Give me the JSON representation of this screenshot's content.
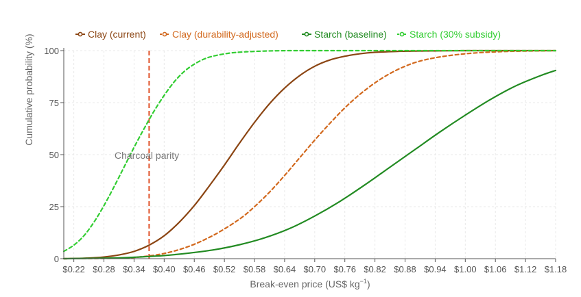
{
  "chart_data": {
    "type": "line",
    "title": "",
    "xlabel": "Break-even price (US$ kg",
    "xlabel_sup": "−1",
    "xlabel_close": ")",
    "ylabel": "Cumulative probability (%)",
    "xlim": [
      0.2,
      1.18
    ],
    "ylim": [
      0,
      100
    ],
    "x_ticks": [
      0.22,
      0.28,
      0.34,
      0.4,
      0.46,
      0.52,
      0.58,
      0.64,
      0.7,
      0.76,
      0.82,
      0.88,
      0.94,
      1.0,
      1.06,
      1.12,
      1.18
    ],
    "x_tick_labels": [
      "$0.22",
      "$0.28",
      "$0.34",
      "$0.40",
      "$0.46",
      "$0.52",
      "$0.58",
      "$0.64",
      "$0.70",
      "$0.76",
      "$0.82",
      "$0.88",
      "$0.94",
      "$1.00",
      "$1.06",
      "$1.12",
      "$1.18"
    ],
    "y_ticks": [
      0,
      25,
      50,
      75,
      100
    ],
    "y_tick_labels": [
      "0",
      "25",
      "50",
      "75",
      "100"
    ],
    "grid": true,
    "legend_position": "top-left",
    "series": [
      {
        "name": "Clay (current)",
        "color": "#8B4513",
        "dash": "solid",
        "x": [
          0.2,
          0.24,
          0.28,
          0.31,
          0.34,
          0.37,
          0.4,
          0.43,
          0.46,
          0.49,
          0.52,
          0.55,
          0.58,
          0.61,
          0.64,
          0.67,
          0.7,
          0.73,
          0.76,
          0.79,
          0.82,
          0.86,
          0.9,
          0.95,
          1.0,
          1.1,
          1.18
        ],
        "y": [
          0,
          0.2,
          0.8,
          1.8,
          3.5,
          6.5,
          11,
          17.5,
          25.5,
          35,
          45,
          55.5,
          65.5,
          74.5,
          82,
          88,
          92.5,
          95.5,
          97.3,
          98.5,
          99.2,
          99.6,
          99.8,
          99.9,
          100,
          100,
          100
        ]
      },
      {
        "name": "Clay (durability-adjusted)",
        "color": "#D2691E",
        "dash": "dashed",
        "x": [
          0.2,
          0.3,
          0.35,
          0.4,
          0.45,
          0.5,
          0.55,
          0.58,
          0.61,
          0.64,
          0.67,
          0.7,
          0.73,
          0.76,
          0.79,
          0.82,
          0.85,
          0.88,
          0.91,
          0.95,
          1.0,
          1.05,
          1.1,
          1.18
        ],
        "y": [
          0,
          0.2,
          0.8,
          2.5,
          6,
          11.5,
          19,
          25,
          32,
          40,
          48.5,
          57,
          65,
          72.5,
          79,
          84.5,
          89,
          92.5,
          95,
          97,
          98.5,
          99.3,
          99.7,
          100
        ]
      },
      {
        "name": "Starch (baseline)",
        "color": "#228B22",
        "dash": "solid",
        "x": [
          0.2,
          0.3,
          0.35,
          0.4,
          0.45,
          0.5,
          0.55,
          0.6,
          0.65,
          0.7,
          0.75,
          0.8,
          0.85,
          0.9,
          0.95,
          1.0,
          1.05,
          1.1,
          1.15,
          1.18
        ],
        "y": [
          0,
          0.3,
          0.8,
          1.5,
          2.7,
          4.3,
          6.7,
          10,
          14.5,
          20.5,
          27.5,
          35.5,
          44,
          52.5,
          61,
          69,
          76.5,
          83,
          88,
          90.5
        ]
      },
      {
        "name": "Starch (30% subsidy)",
        "color": "#32CD32",
        "dash": "dashed",
        "x": [
          0.2,
          0.22,
          0.24,
          0.26,
          0.28,
          0.3,
          0.32,
          0.34,
          0.36,
          0.38,
          0.4,
          0.42,
          0.44,
          0.46,
          0.48,
          0.5,
          0.53,
          0.56,
          0.6,
          0.65,
          0.7,
          0.8,
          1.0,
          1.18
        ],
        "y": [
          3.5,
          6.5,
          11,
          17.5,
          25.5,
          34.5,
          44,
          53.5,
          62.5,
          71,
          78.5,
          85,
          90,
          93.5,
          96,
          97.5,
          98.8,
          99.4,
          99.8,
          100,
          100,
          100,
          100,
          100
        ]
      }
    ],
    "reference_line": {
      "x": 0.37,
      "color": "#E0522A",
      "label": "Charcoal parity"
    }
  }
}
